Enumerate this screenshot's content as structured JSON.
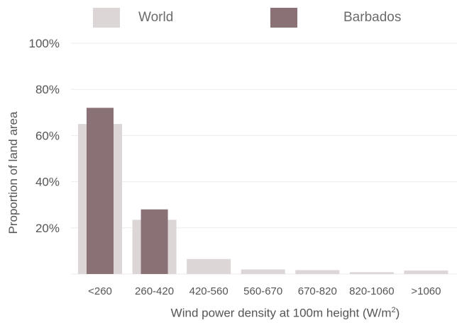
{
  "chart_data": {
    "type": "bar",
    "title": "",
    "xlabel": "Wind power density at 100m height (W/m²)",
    "xlabel_main": "Wind power density at 100m height (W/m",
    "xlabel_sup": "2",
    "xlabel_end": ")",
    "ylabel": "Proportion of land area",
    "ylim": [
      0,
      100
    ],
    "yticks": [
      "20%",
      "40%",
      "60%",
      "80%",
      "100%"
    ],
    "ytick_values": [
      20,
      40,
      60,
      80,
      100
    ],
    "grid": true,
    "legend_position": "top",
    "categories": [
      "<260",
      "260-420",
      "420-560",
      "560-670",
      "670-820",
      "820-1060",
      ">1060"
    ],
    "series": [
      {
        "name": "World",
        "color": "#dcd6d7",
        "values": [
          65,
          23.5,
          6.5,
          2,
          1.7,
          0.8,
          1.5
        ]
      },
      {
        "name": "Barbados",
        "color": "#8a7176",
        "values": [
          72,
          28,
          0,
          0,
          0,
          0,
          0
        ]
      }
    ]
  }
}
